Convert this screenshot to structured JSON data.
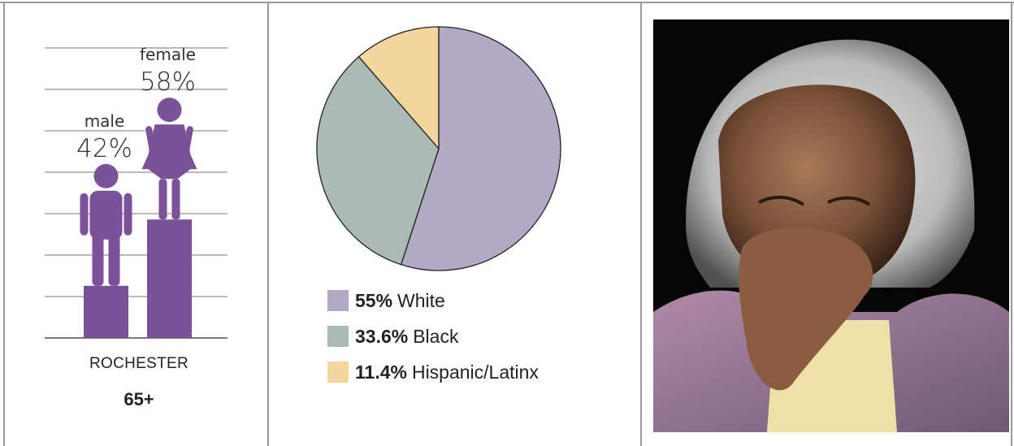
{
  "gender_chart": {
    "place": "ROCHESTER",
    "age_group": "65+",
    "colors": {
      "bar": "#7b5198",
      "grid": "#777777"
    }
  },
  "chart_data": [
    {
      "type": "bar",
      "categories": [
        "male",
        "female"
      ],
      "values": [
        42,
        58
      ],
      "data_labels": [
        "42%",
        "58%"
      ],
      "ylim": [
        0,
        100
      ],
      "grid": true
    },
    {
      "type": "pie",
      "slices": [
        {
          "pct_label": "55%",
          "name": "White",
          "value": 55,
          "color": "#b3a9c5"
        },
        {
          "pct_label": "33.6%",
          "name": "Black",
          "value": 33.6,
          "color": "#aabbb5"
        },
        {
          "pct_label": "11.4%",
          "name": "Hispanic/Latinx",
          "value": 11.4,
          "color": "#f4d59d"
        }
      ],
      "legend": "bottom"
    }
  ],
  "photo": {
    "icon": "elderly-woman-photo"
  }
}
